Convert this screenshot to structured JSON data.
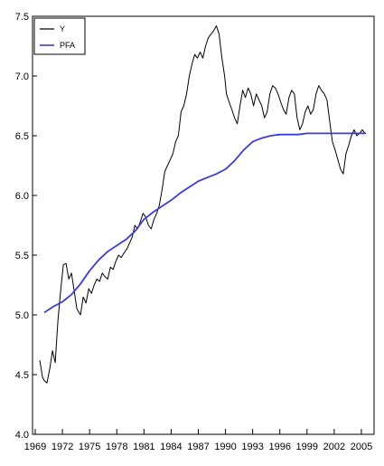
{
  "chart_data": {
    "type": "line",
    "title": "",
    "xlabel": "",
    "ylabel": "",
    "xlim": [
      1968.7,
      2006.4
    ],
    "ylim": [
      4.0,
      7.5
    ],
    "x_ticks": [
      1969,
      1972,
      1975,
      1978,
      1981,
      1984,
      1987,
      1990,
      1993,
      1996,
      1999,
      2002,
      2005
    ],
    "x_tick_labels": [
      "1969",
      "1972",
      "1975",
      "1978",
      "1981",
      "1984",
      "1987",
      "1990",
      "1993",
      "1996",
      "1999",
      "2002",
      "2005"
    ],
    "y_ticks": [
      4.0,
      4.5,
      5.0,
      5.5,
      6.0,
      6.5,
      7.0,
      7.5
    ],
    "y_tick_labels": [
      "4.0",
      "4.5",
      "5.0",
      "5.5",
      "6.0",
      "6.5",
      "7.0",
      "7.5"
    ],
    "grid": false,
    "legend_position": "top-left",
    "series": [
      {
        "name": "Y",
        "color": "#000000",
        "x": [
          1969.5,
          1969.8,
          1970.0,
          1970.3,
          1970.6,
          1970.9,
          1971.2,
          1971.5,
          1971.8,
          1972.1,
          1972.4,
          1972.7,
          1973.0,
          1973.3,
          1973.6,
          1974.0,
          1974.3,
          1974.6,
          1974.9,
          1975.2,
          1975.5,
          1975.8,
          1976.1,
          1976.4,
          1976.7,
          1977.0,
          1977.3,
          1977.6,
          1977.9,
          1978.2,
          1978.5,
          1978.8,
          1979.1,
          1979.4,
          1979.7,
          1980.0,
          1980.3,
          1980.6,
          1980.9,
          1981.2,
          1981.5,
          1981.8,
          1982.1,
          1982.4,
          1982.7,
          1983.0,
          1983.3,
          1983.6,
          1983.9,
          1984.2,
          1984.5,
          1984.8,
          1985.1,
          1985.4,
          1985.7,
          1986.0,
          1986.3,
          1986.6,
          1986.9,
          1987.2,
          1987.5,
          1987.8,
          1988.1,
          1988.4,
          1988.7,
          1989.0,
          1989.3,
          1989.6,
          1989.9,
          1990.1,
          1990.4,
          1990.7,
          1991.0,
          1991.3,
          1991.6,
          1991.9,
          1992.2,
          1992.5,
          1992.8,
          1993.1,
          1993.4,
          1993.7,
          1994.0,
          1994.3,
          1994.6,
          1994.9,
          1995.2,
          1995.5,
          1995.8,
          1996.1,
          1996.4,
          1996.7,
          1997.0,
          1997.3,
          1997.6,
          1997.9,
          1998.2,
          1998.5,
          1998.8,
          1999.1,
          1999.4,
          1999.7,
          2000.0,
          2000.3,
          2000.6,
          2000.9,
          2001.2,
          2001.5,
          2001.8,
          2002.1,
          2002.4,
          2002.7,
          2003.0,
          2003.3,
          2003.6,
          2003.9,
          2004.2,
          2004.5,
          2004.8,
          2005.1,
          2005.4
        ],
        "y": [
          4.62,
          4.48,
          4.45,
          4.43,
          4.55,
          4.7,
          4.6,
          4.95,
          5.2,
          5.42,
          5.43,
          5.3,
          5.35,
          5.2,
          5.05,
          5.0,
          5.15,
          5.1,
          5.22,
          5.18,
          5.25,
          5.3,
          5.28,
          5.35,
          5.32,
          5.3,
          5.4,
          5.38,
          5.45,
          5.5,
          5.48,
          5.52,
          5.55,
          5.6,
          5.65,
          5.75,
          5.72,
          5.78,
          5.85,
          5.82,
          5.75,
          5.72,
          5.8,
          5.85,
          5.92,
          6.05,
          6.2,
          6.25,
          6.3,
          6.35,
          6.45,
          6.5,
          6.7,
          6.75,
          6.85,
          7.0,
          7.1,
          7.18,
          7.15,
          7.2,
          7.15,
          7.25,
          7.32,
          7.35,
          7.38,
          7.42,
          7.35,
          7.15,
          7.0,
          6.85,
          6.78,
          6.72,
          6.65,
          6.6,
          6.75,
          6.88,
          6.82,
          6.9,
          6.85,
          6.75,
          6.85,
          6.8,
          6.75,
          6.65,
          6.7,
          6.85,
          6.92,
          6.9,
          6.85,
          6.78,
          6.72,
          6.68,
          6.82,
          6.88,
          6.85,
          6.65,
          6.55,
          6.6,
          6.7,
          6.75,
          6.68,
          6.72,
          6.85,
          6.92,
          6.88,
          6.85,
          6.8,
          6.62,
          6.45,
          6.38,
          6.3,
          6.22,
          6.18,
          6.35,
          6.42,
          6.5,
          6.55,
          6.5,
          6.52,
          6.55,
          6.52
        ]
      },
      {
        "name": "PFA",
        "color": "#3b3bd6",
        "x": [
          1970.0,
          1971.0,
          1972.0,
          1973.0,
          1974.0,
          1975.0,
          1976.0,
          1977.0,
          1978.0,
          1979.0,
          1980.0,
          1981.0,
          1982.0,
          1983.0,
          1984.0,
          1985.0,
          1986.0,
          1987.0,
          1988.0,
          1989.0,
          1990.0,
          1991.0,
          1992.0,
          1993.0,
          1994.0,
          1995.0,
          1996.0,
          1997.0,
          1998.0,
          1999.0,
          2000.0,
          2001.0,
          2002.0,
          2003.0,
          2004.0,
          2005.0,
          2005.5
        ],
        "y": [
          5.02,
          5.07,
          5.11,
          5.17,
          5.26,
          5.37,
          5.46,
          5.53,
          5.58,
          5.63,
          5.7,
          5.8,
          5.86,
          5.91,
          5.96,
          6.02,
          6.07,
          6.12,
          6.15,
          6.18,
          6.22,
          6.29,
          6.38,
          6.45,
          6.48,
          6.5,
          6.51,
          6.51,
          6.51,
          6.52,
          6.52,
          6.52,
          6.52,
          6.52,
          6.52,
          6.52,
          6.52
        ]
      }
    ]
  }
}
